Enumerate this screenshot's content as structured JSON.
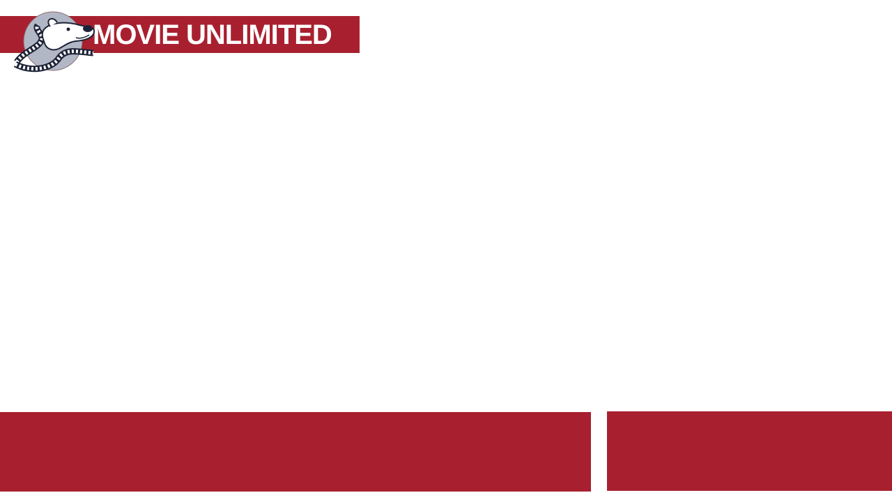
{
  "header": {
    "logo_text": "MOVIE UNLIMITED",
    "mascot_icon": "dog-filmstrip-mascot-icon"
  },
  "colors": {
    "brand_red": "#a8202f",
    "mascot_circle": "#b2b7c6",
    "mascot_outline": "#1d2337",
    "background": "#ffffff"
  }
}
